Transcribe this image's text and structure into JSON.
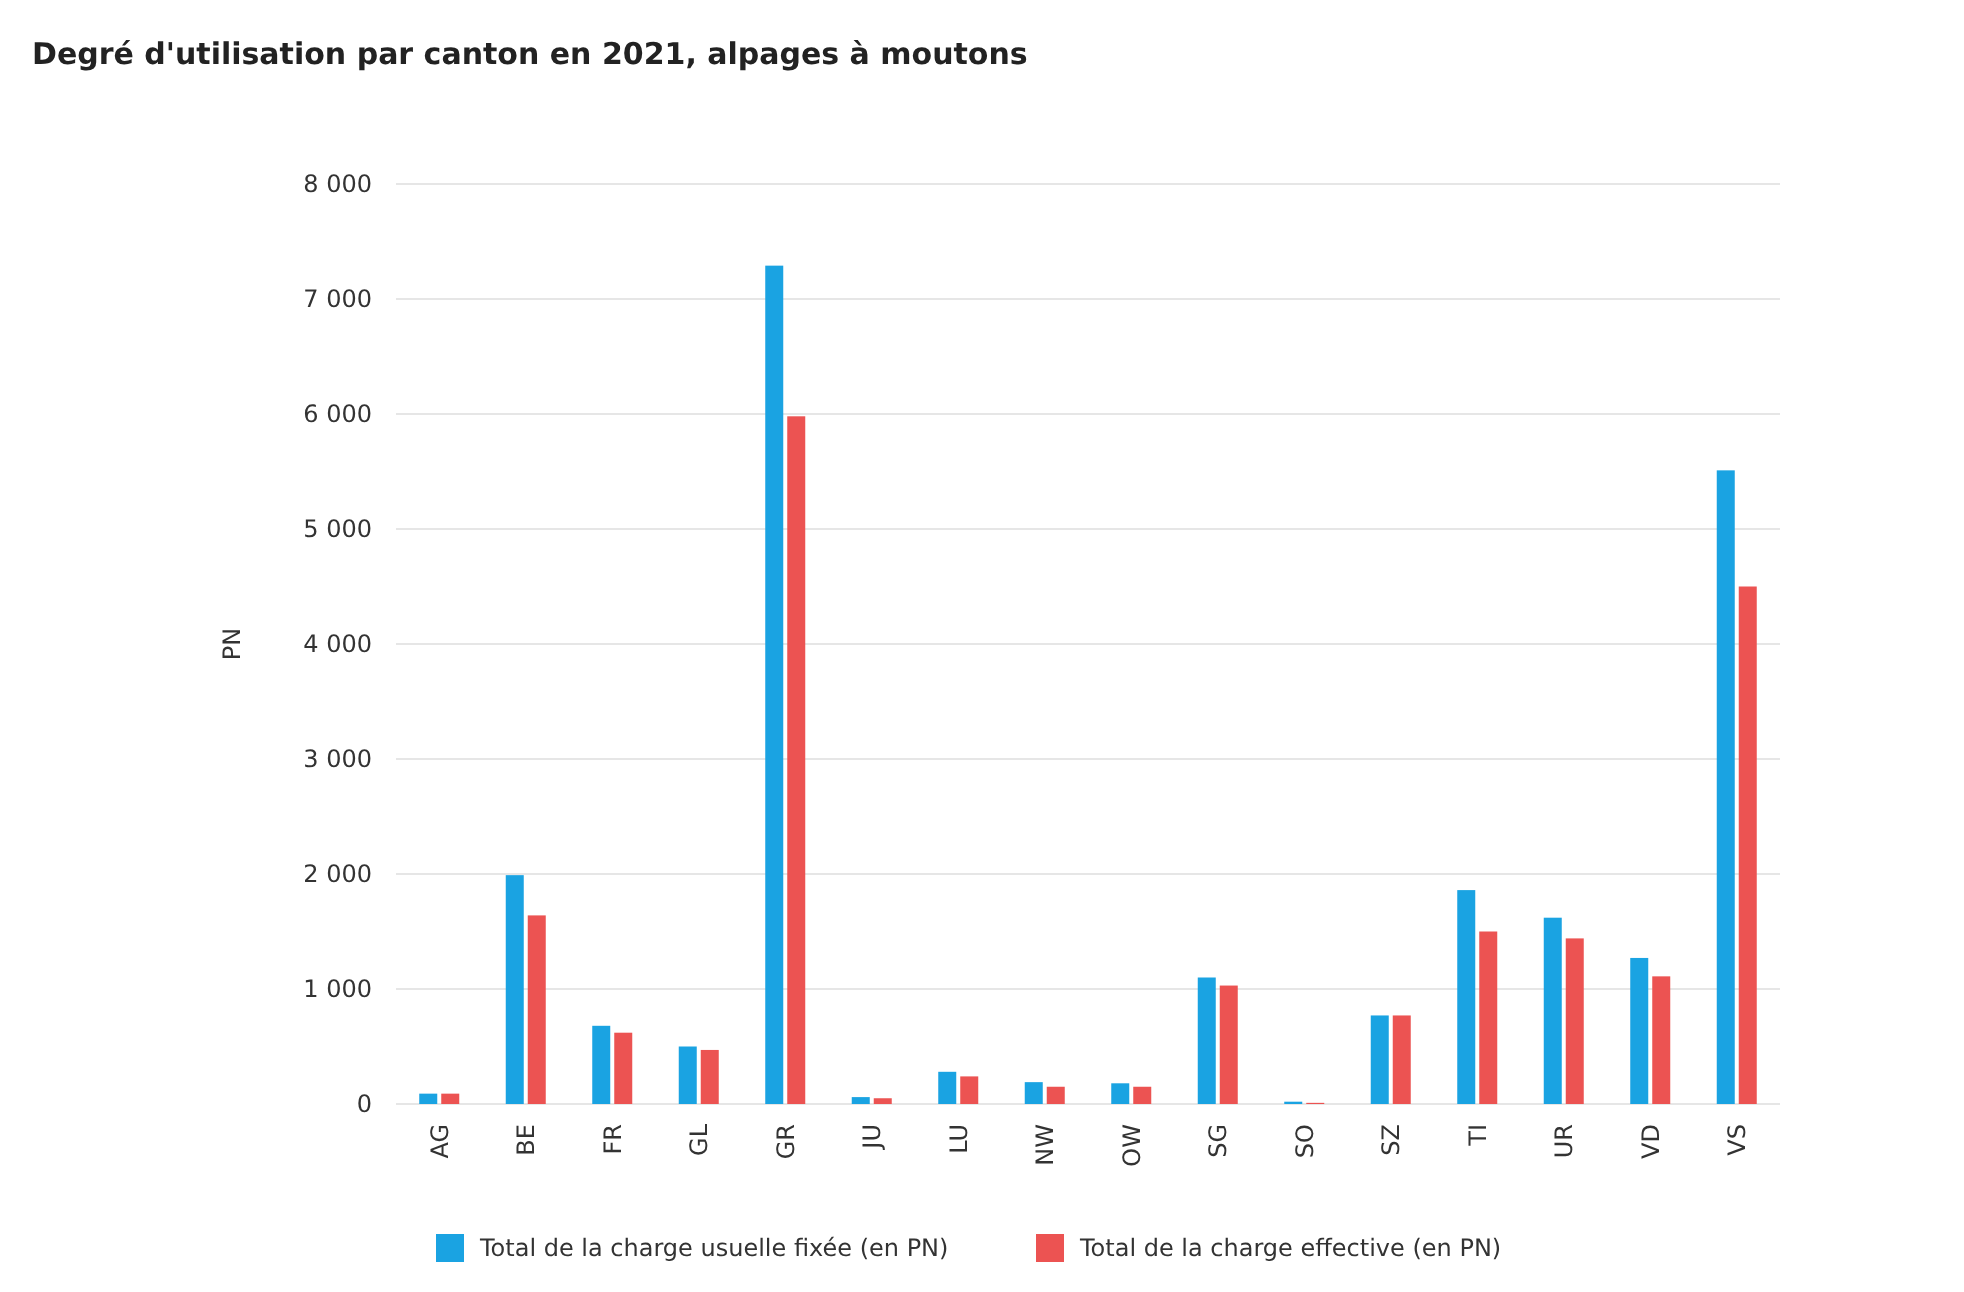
{
  "chart_data": {
    "type": "bar",
    "title": "Degré d'utilisation par canton en 2021, alpages à moutons",
    "ylabel": "PN",
    "categories": [
      "AG",
      "BE",
      "FR",
      "GL",
      "GR",
      "JU",
      "LU",
      "NW",
      "OW",
      "SG",
      "SO",
      "SZ",
      "TI",
      "UR",
      "VD",
      "VS"
    ],
    "series": [
      {
        "name": "Total de la charge usuelle fixée (en PN)",
        "color": "#1aa3e2",
        "values": [
          90,
          1990,
          680,
          500,
          7290,
          60,
          280,
          190,
          180,
          1100,
          20,
          770,
          1860,
          1620,
          1270,
          5510
        ]
      },
      {
        "name": "Total de la charge effective (en PN)",
        "color": "#ec5352",
        "values": [
          90,
          1640,
          620,
          470,
          5980,
          50,
          240,
          150,
          150,
          1030,
          10,
          770,
          1500,
          1440,
          1110,
          4500
        ]
      }
    ],
    "ylim": [
      0,
      8000
    ],
    "yticks": [
      0,
      {
        "value": 1000,
        "label": "1 000"
      },
      {
        "value": 2000,
        "label": "2 000"
      },
      {
        "value": 3000,
        "label": "3 000"
      },
      {
        "value": 4000,
        "label": "4 000"
      },
      {
        "value": 5000,
        "label": "5 000"
      },
      {
        "value": 6000,
        "label": "6 000"
      },
      {
        "value": 7000,
        "label": "7 000"
      },
      {
        "value": 8000,
        "label": "8 000"
      }
    ],
    "grid": "y",
    "legend": "bottom"
  }
}
